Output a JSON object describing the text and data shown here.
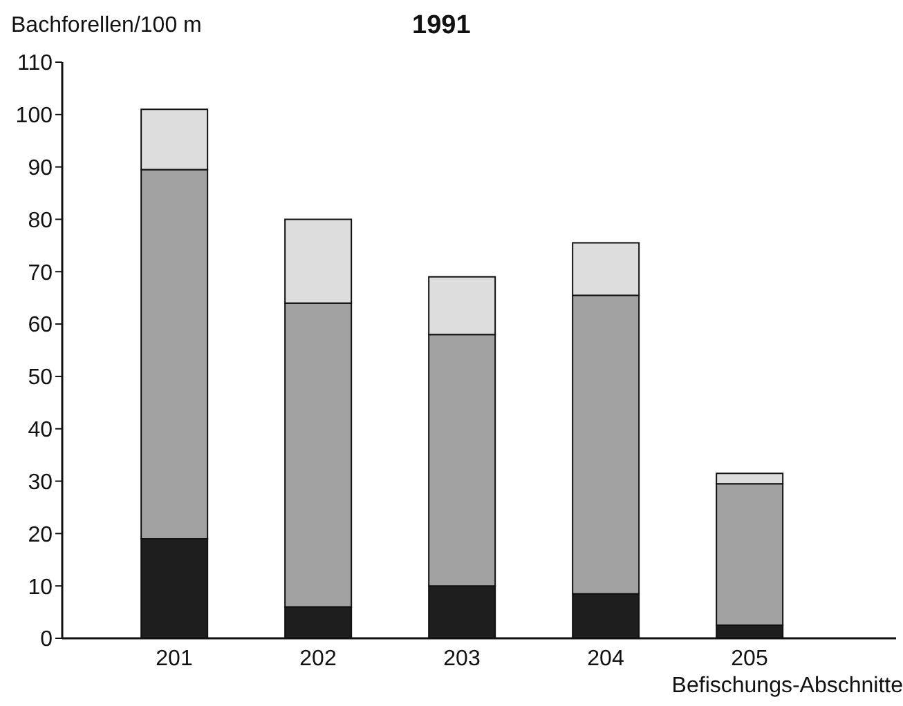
{
  "chart_data": {
    "type": "bar",
    "title": "1991",
    "ylabel": "Bachforellen/100 m",
    "xlabel": "Befischungs-Abschnitte",
    "categories": [
      "201",
      "202",
      "203",
      "204",
      "205"
    ],
    "stacked": true,
    "series": [
      {
        "color": "#1e1e1e",
        "values": [
          19,
          6,
          10,
          8.5,
          2.5
        ]
      },
      {
        "color": "#a2a2a2",
        "values": [
          70.5,
          58,
          48,
          57,
          27
        ]
      },
      {
        "color": "#dddddd",
        "values": [
          11.5,
          16,
          11,
          10,
          2
        ]
      }
    ],
    "ylim": [
      0,
      110
    ],
    "yticks": [
      0,
      10,
      20,
      30,
      40,
      50,
      60,
      70,
      80,
      90,
      100,
      110
    ],
    "grid": false,
    "legend": false
  }
}
